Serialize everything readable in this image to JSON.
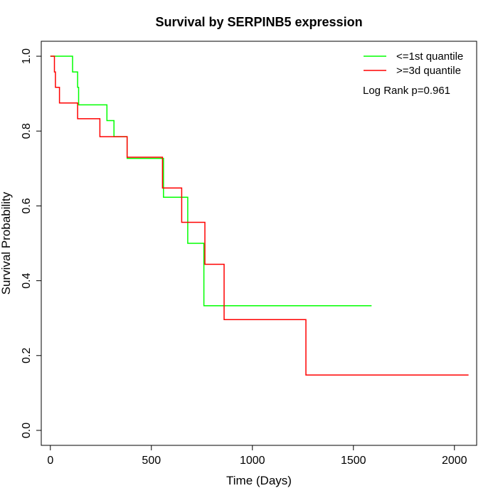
{
  "chart_data": {
    "type": "line",
    "title": "Survival by SERPINB5 expression",
    "xlabel": "Time (Days)",
    "ylabel": "Survival Probability",
    "xlim": [
      -45,
      2110
    ],
    "ylim": [
      -0.04,
      1.04
    ],
    "x_ticks": [
      0,
      500,
      1000,
      1500,
      2000
    ],
    "x_tick_labels": [
      "0",
      "500",
      "1000",
      "1500",
      "2000"
    ],
    "y_ticks": [
      0.0,
      0.2,
      0.4,
      0.6,
      0.8,
      1.0
    ],
    "y_tick_labels": [
      "0.0",
      "0.2",
      "0.4",
      "0.6",
      "0.8",
      "1.0"
    ],
    "grid": false,
    "legend_position": "top-right",
    "annotation": "Log Rank p=0.961",
    "series": [
      {
        "name": "<=1st quantile",
        "color": "#00ff00",
        "step": true,
        "x": [
          0,
          110,
          135,
          140,
          280,
          315,
          380,
          560,
          680,
          760,
          1590
        ],
        "y": [
          1.0,
          0.958,
          0.917,
          0.87,
          0.828,
          0.785,
          0.727,
          0.623,
          0.5,
          0.333,
          0.333
        ]
      },
      {
        "name": ">=3d quantile",
        "color": "#ff0000",
        "step": true,
        "x": [
          0,
          20,
          25,
          45,
          135,
          245,
          380,
          555,
          650,
          765,
          860,
          1265,
          2070
        ],
        "y": [
          1.0,
          0.958,
          0.917,
          0.875,
          0.833,
          0.785,
          0.73,
          0.648,
          0.556,
          0.444,
          0.296,
          0.148,
          0.148
        ]
      }
    ]
  }
}
